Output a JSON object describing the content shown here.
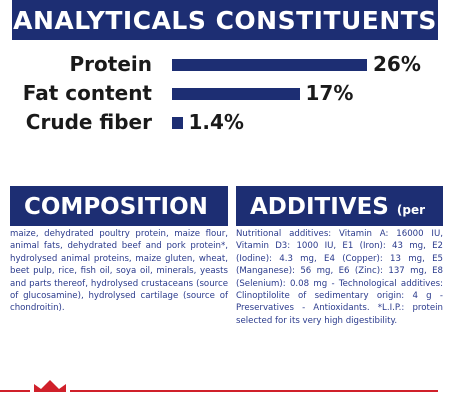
{
  "chart_data": {
    "type": "bar",
    "title": "ANALYTICALS CONSTITUENTS",
    "categories": [
      "Protein",
      "Fat content",
      "Crude fiber"
    ],
    "values": [
      26,
      17,
      1.4
    ],
    "value_labels": [
      "26%",
      "17%",
      "1.4%"
    ],
    "color": "#1d2e73"
  },
  "composition": {
    "title": "COMPOSITION",
    "text": "maize, dehydrated poultry protein, maize flour, animal fats, dehydrated beef and pork protein*, hydrolysed animal proteins, maize gluten, wheat, beet pulp, rice, fish oil, soya oil, minerals, yeasts and parts thereof, hydrolysed crustaceans (source of glucosamine), hydrolysed cartilage (source of chondroitin)."
  },
  "additives": {
    "title": "ADDITIVES",
    "unit": "(per kg)",
    "text": "Nutritional additives: Vitamin A: 16000 IU, Vitamin D3: 1000 IU, E1 (Iron): 43 mg, E2 (Iodine): 4.3 mg, E4 (Copper): 13 mg, E5 (Manganese): 56 mg, E6 (Zinc): 137 mg, E8 (Selenium): 0.08 mg - Technological additives: Clinoptilolite of sedimentary origin: 4 g - Preservatives - Antioxidants. *L.I.P.: protein selected for its very high digestibility."
  }
}
